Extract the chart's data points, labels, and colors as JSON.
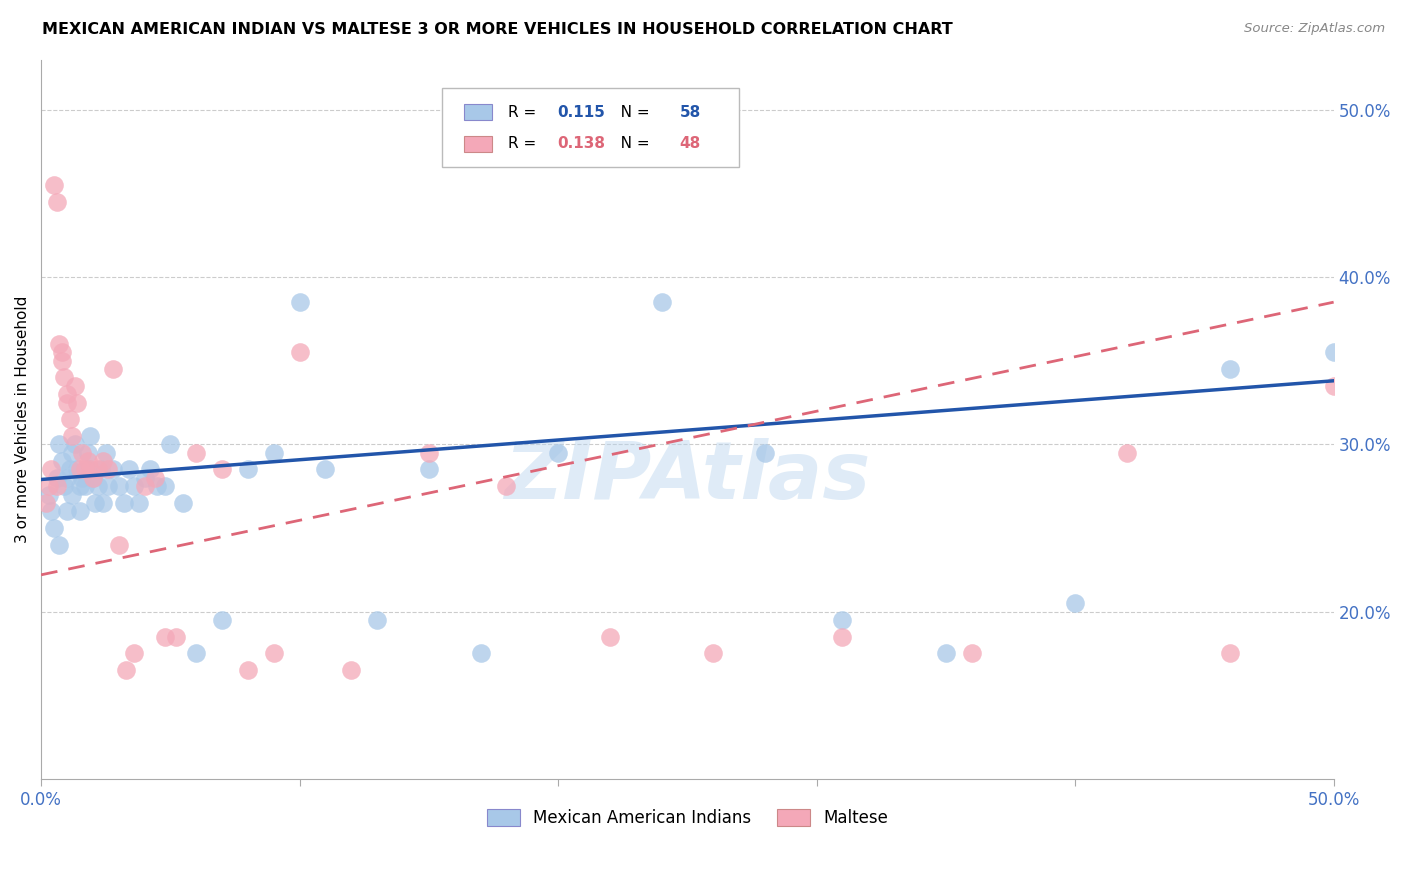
{
  "title": "MEXICAN AMERICAN INDIAN VS MALTESE 3 OR MORE VEHICLES IN HOUSEHOLD CORRELATION CHART",
  "source": "Source: ZipAtlas.com",
  "ylabel": "3 or more Vehicles in Household",
  "xlim": [
    0.0,
    0.5
  ],
  "ylim": [
    0.1,
    0.53
  ],
  "xticks": [
    0.0,
    0.1,
    0.2,
    0.3,
    0.4,
    0.5
  ],
  "xtick_labels": [
    "0.0%",
    "",
    "",
    "",
    "",
    "50.0%"
  ],
  "yticks": [
    0.2,
    0.3,
    0.4,
    0.5
  ],
  "ytick_labels": [
    "20.0%",
    "30.0%",
    "40.0%",
    "50.0%"
  ],
  "blue_R": 0.115,
  "blue_N": 58,
  "pink_R": 0.138,
  "pink_N": 48,
  "blue_color": "#A8C8E8",
  "pink_color": "#F4A8B8",
  "blue_line_color": "#2255AA",
  "pink_line_color": "#DD6677",
  "watermark": "ZIPAtlas",
  "blue_line_x0": 0.0,
  "blue_line_y0": 0.279,
  "blue_line_x1": 0.5,
  "blue_line_y1": 0.338,
  "pink_line_x0": 0.0,
  "pink_line_y0": 0.222,
  "pink_line_x1": 0.5,
  "pink_line_y1": 0.385,
  "blue_scatter_x": [
    0.003,
    0.004,
    0.005,
    0.006,
    0.007,
    0.007,
    0.008,
    0.009,
    0.01,
    0.01,
    0.011,
    0.012,
    0.012,
    0.013,
    0.014,
    0.015,
    0.015,
    0.016,
    0.017,
    0.018,
    0.018,
    0.019,
    0.02,
    0.021,
    0.022,
    0.023,
    0.024,
    0.025,
    0.026,
    0.028,
    0.03,
    0.032,
    0.034,
    0.036,
    0.038,
    0.04,
    0.042,
    0.045,
    0.048,
    0.05,
    0.055,
    0.06,
    0.07,
    0.08,
    0.09,
    0.1,
    0.11,
    0.13,
    0.15,
    0.17,
    0.2,
    0.24,
    0.28,
    0.31,
    0.35,
    0.4,
    0.46,
    0.5
  ],
  "blue_scatter_y": [
    0.27,
    0.26,
    0.25,
    0.28,
    0.24,
    0.3,
    0.29,
    0.275,
    0.26,
    0.28,
    0.285,
    0.27,
    0.295,
    0.3,
    0.285,
    0.26,
    0.275,
    0.28,
    0.275,
    0.285,
    0.295,
    0.305,
    0.28,
    0.265,
    0.275,
    0.285,
    0.265,
    0.295,
    0.275,
    0.285,
    0.275,
    0.265,
    0.285,
    0.275,
    0.265,
    0.28,
    0.285,
    0.275,
    0.275,
    0.3,
    0.265,
    0.175,
    0.195,
    0.285,
    0.295,
    0.385,
    0.285,
    0.195,
    0.285,
    0.175,
    0.295,
    0.385,
    0.295,
    0.195,
    0.175,
    0.205,
    0.345,
    0.355
  ],
  "pink_scatter_x": [
    0.002,
    0.003,
    0.004,
    0.005,
    0.006,
    0.006,
    0.007,
    0.008,
    0.008,
    0.009,
    0.01,
    0.01,
    0.011,
    0.012,
    0.013,
    0.014,
    0.015,
    0.016,
    0.017,
    0.018,
    0.019,
    0.02,
    0.022,
    0.024,
    0.026,
    0.028,
    0.03,
    0.033,
    0.036,
    0.04,
    0.044,
    0.048,
    0.052,
    0.06,
    0.07,
    0.08,
    0.09,
    0.1,
    0.12,
    0.15,
    0.18,
    0.22,
    0.26,
    0.31,
    0.36,
    0.42,
    0.46,
    0.5
  ],
  "pink_scatter_y": [
    0.265,
    0.275,
    0.285,
    0.455,
    0.445,
    0.275,
    0.36,
    0.35,
    0.355,
    0.34,
    0.33,
    0.325,
    0.315,
    0.305,
    0.335,
    0.325,
    0.285,
    0.295,
    0.285,
    0.29,
    0.285,
    0.28,
    0.285,
    0.29,
    0.285,
    0.345,
    0.24,
    0.165,
    0.175,
    0.275,
    0.28,
    0.185,
    0.185,
    0.295,
    0.285,
    0.165,
    0.175,
    0.355,
    0.165,
    0.295,
    0.275,
    0.185,
    0.175,
    0.185,
    0.175,
    0.295,
    0.175,
    0.335
  ]
}
